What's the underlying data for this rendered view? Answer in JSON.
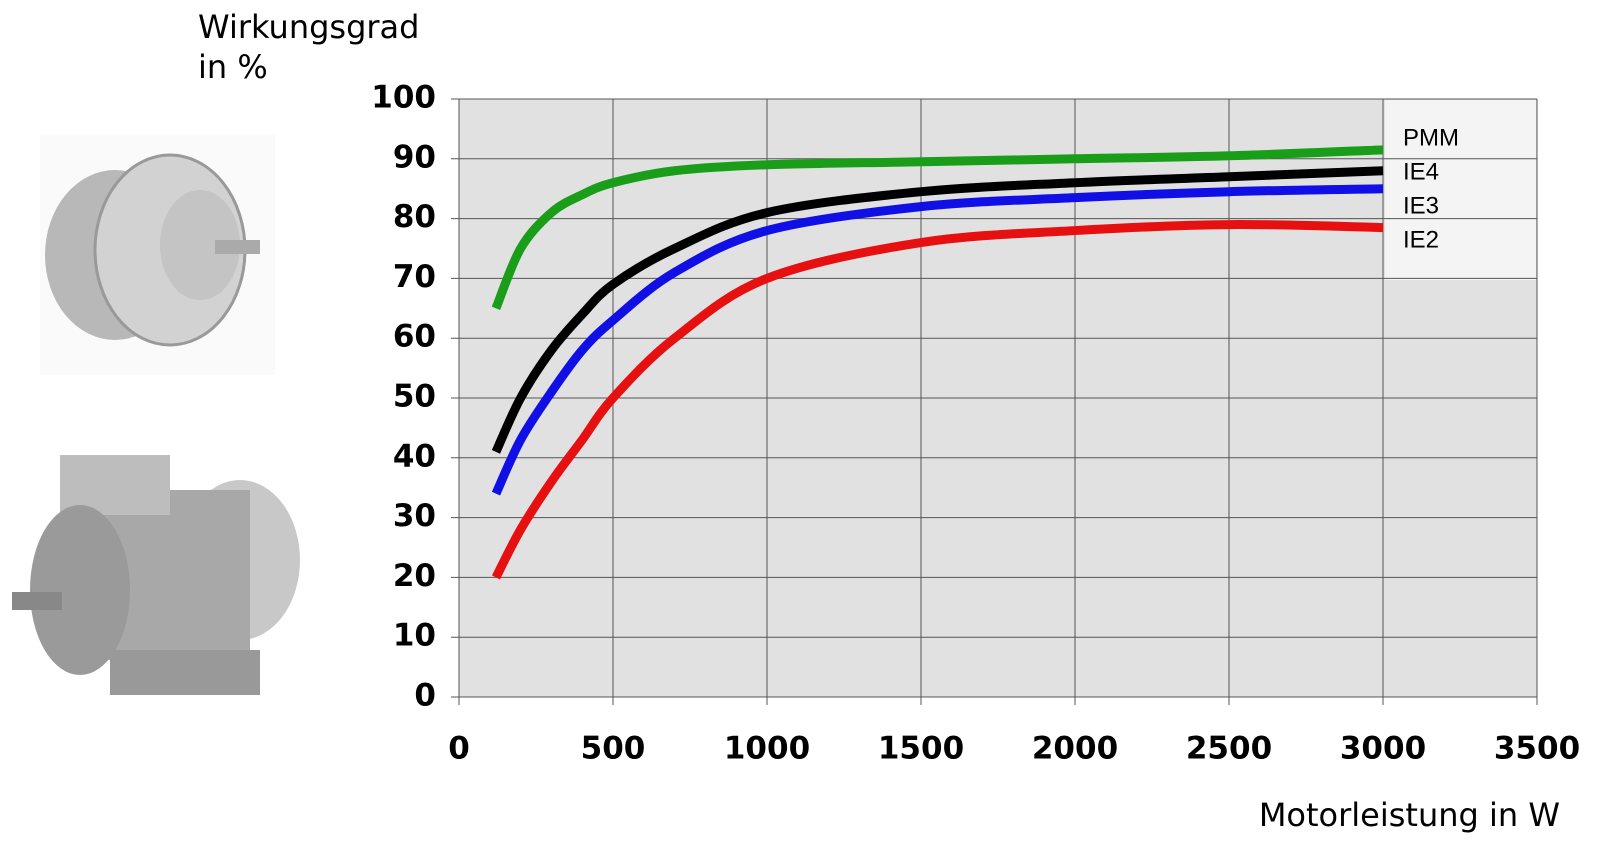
{
  "chart_data": {
    "type": "line",
    "y_label": [
      "Wirkungsgrad",
      "in %"
    ],
    "x_label": "Motorleistung in W",
    "x": [
      120,
      200,
      300,
      400,
      500,
      700,
      1000,
      1500,
      2000,
      2500,
      3000
    ],
    "series": [
      {
        "name": "PMM",
        "color": "#1a9e1a",
        "values": [
          65,
          75,
          81,
          84,
          86,
          88,
          89,
          89.5,
          90,
          90.5,
          91.5
        ]
      },
      {
        "name": "IE4",
        "color": "#000000",
        "values": [
          41,
          50,
          58,
          64,
          69,
          75,
          81,
          84.5,
          86,
          87,
          88
        ]
      },
      {
        "name": "IE3",
        "color": "#1010e6",
        "values": [
          34,
          43,
          51,
          58,
          63,
          71,
          78,
          82,
          83.5,
          84.5,
          85
        ]
      },
      {
        "name": "IE2",
        "color": "#e61010",
        "values": [
          20,
          28,
          36,
          43,
          50,
          60,
          70,
          76,
          78,
          79,
          78.5
        ]
      }
    ],
    "xlim": [
      0,
      3500
    ],
    "xticks": [
      0,
      500,
      1000,
      1500,
      2000,
      2500,
      3000,
      3500
    ],
    "ylim": [
      0,
      100
    ],
    "yticks": [
      0,
      10,
      20,
      30,
      40,
      50,
      60,
      70,
      80,
      90,
      100
    ],
    "grid": true
  }
}
